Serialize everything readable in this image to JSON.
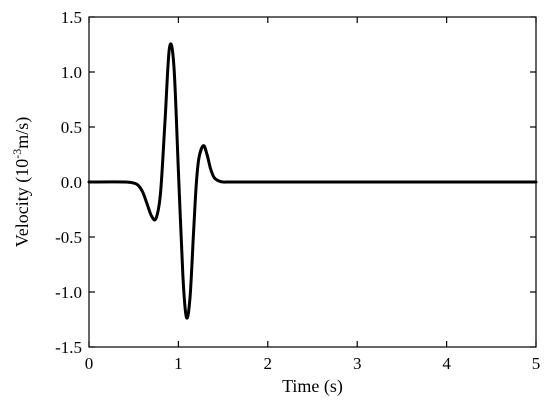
{
  "chart_data": {
    "type": "line",
    "title": "",
    "xlabel": "Time (s)",
    "ylabel": {
      "prefix": "Velocity (10",
      "superscript": "-3",
      "suffix": "m/s)"
    },
    "xlim": [
      0,
      5
    ],
    "ylim": [
      -1.5,
      1.5
    ],
    "xticks": [
      0,
      1,
      2,
      3,
      4,
      5
    ],
    "yticks": [
      -1.5,
      -1.0,
      -0.5,
      0.0,
      0.5,
      1.0,
      1.5
    ],
    "xtick_labels": [
      "0",
      "1",
      "2",
      "3",
      "4",
      "5"
    ],
    "ytick_labels": [
      "-1.5",
      "-1.0",
      "-0.5",
      "0.0",
      "0.5",
      "1.0",
      "1.5"
    ],
    "grid": false,
    "series": [
      {
        "color": "#000000",
        "x": [
          0,
          0.4,
          0.5,
          0.55,
          0.6,
          0.65,
          0.7,
          0.75,
          0.8,
          0.85,
          0.9,
          0.95,
          1.0,
          1.05,
          1.09,
          1.13,
          1.17,
          1.2,
          1.23,
          1.28,
          1.32,
          1.36,
          1.4,
          1.45,
          1.5,
          1.6,
          2,
          3,
          4,
          5
        ],
        "y": [
          0,
          0,
          -0.01,
          -0.03,
          -0.09,
          -0.2,
          -0.31,
          -0.33,
          -0.1,
          0.55,
          1.22,
          1.05,
          0.1,
          -0.85,
          -1.23,
          -1.05,
          -0.45,
          -0.02,
          0.22,
          0.33,
          0.25,
          0.12,
          0.04,
          0.01,
          0,
          0,
          0,
          0,
          0,
          0
        ]
      }
    ]
  }
}
